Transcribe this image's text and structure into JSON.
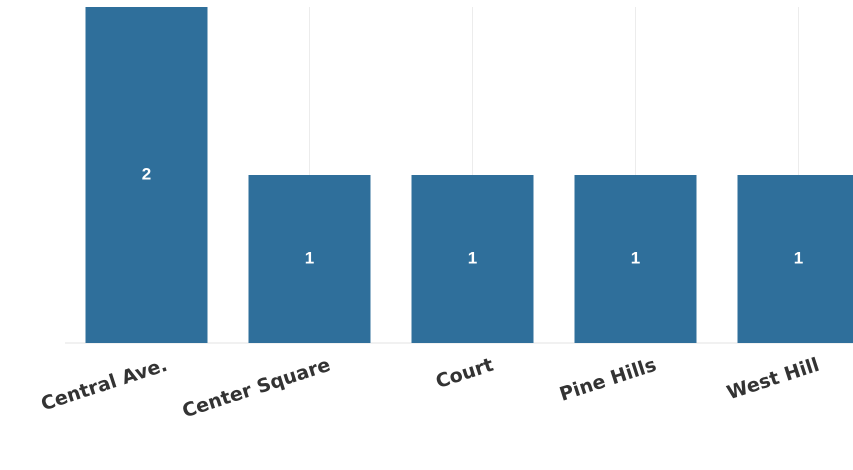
{
  "chart_data": {
    "type": "bar",
    "categories": [
      "Central Ave.",
      "Center Square",
      "Court",
      "Pine Hills",
      "West Hill"
    ],
    "values": [
      2,
      1,
      1,
      1,
      1
    ],
    "data_labels": [
      "2",
      "1",
      "1",
      "1",
      "1"
    ],
    "title": "",
    "xlabel": "",
    "ylabel": "",
    "ylim": [
      0,
      2
    ],
    "grid": true,
    "legend": "none",
    "colors": {
      "bar": "#2f6f9b",
      "label": "#ffffff",
      "grid": "#ececec"
    }
  }
}
